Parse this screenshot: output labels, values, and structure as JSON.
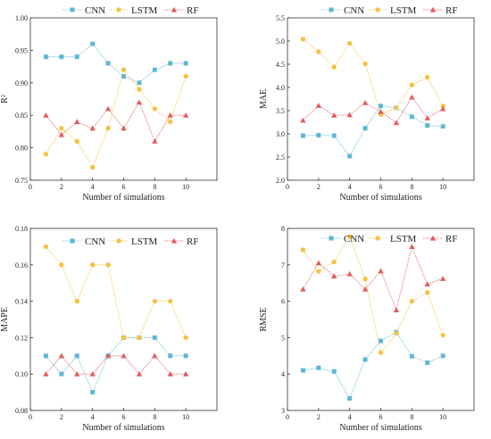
{
  "chart_data": [
    {
      "type": "line",
      "xlabel": "Number of simulations",
      "ylabel": "R²",
      "x": [
        1,
        2,
        3,
        4,
        5,
        6,
        7,
        8,
        9,
        10
      ],
      "xlim": [
        0,
        12
      ],
      "xticks": [
        0,
        2,
        4,
        6,
        8,
        10
      ],
      "ylim": [
        0.75,
        1.0
      ],
      "yticks": [
        0.75,
        0.8,
        0.85,
        0.9,
        0.95,
        1.0
      ],
      "ytick_labels": [
        "0.75",
        "0.80",
        "0.85",
        "0.90",
        "0.95",
        "1.00"
      ],
      "legend_position": "top",
      "series": [
        {
          "name": "CNN",
          "color": "#5fb6d6",
          "marker": "square",
          "values": [
            0.94,
            0.94,
            0.94,
            0.96,
            0.93,
            0.91,
            0.9,
            0.92,
            0.93,
            0.93
          ]
        },
        {
          "name": "LSTM",
          "color": "#f5c242",
          "marker": "circle",
          "values": [
            0.79,
            0.83,
            0.81,
            0.77,
            0.83,
            0.92,
            0.89,
            0.86,
            0.84,
            0.91
          ]
        },
        {
          "name": "RF",
          "color": "#e45c5c",
          "marker": "triangle",
          "values": [
            0.85,
            0.82,
            0.84,
            0.83,
            0.86,
            0.83,
            0.87,
            0.81,
            0.85,
            0.85
          ]
        }
      ]
    },
    {
      "type": "line",
      "xlabel": "Number of simulations",
      "ylabel": "MAE",
      "x": [
        1,
        2,
        3,
        4,
        5,
        6,
        7,
        8,
        9,
        10
      ],
      "xlim": [
        0,
        12
      ],
      "xticks": [
        0,
        2,
        4,
        6,
        8,
        10
      ],
      "ylim": [
        2.0,
        5.5
      ],
      "yticks": [
        2.0,
        2.5,
        3.0,
        3.5,
        4.0,
        4.5,
        5.0,
        5.5
      ],
      "ytick_labels": [
        "2.0",
        "2.5",
        "3.0",
        "3.5",
        "4.0",
        "4.5",
        "5.0",
        "5.5"
      ],
      "legend_position": "top",
      "series": [
        {
          "name": "CNN",
          "color": "#5fb6d6",
          "marker": "square",
          "values": [
            2.96,
            2.97,
            2.96,
            2.52,
            3.12,
            3.6,
            3.56,
            3.37,
            3.18,
            3.16
          ]
        },
        {
          "name": "LSTM",
          "color": "#f5c242",
          "marker": "circle",
          "values": [
            5.04,
            4.77,
            4.44,
            4.95,
            4.51,
            3.42,
            3.56,
            4.05,
            4.22,
            3.6
          ]
        },
        {
          "name": "RF",
          "color": "#e45c5c",
          "marker": "triangle",
          "values": [
            3.29,
            3.61,
            3.4,
            3.41,
            3.67,
            3.48,
            3.24,
            3.79,
            3.34,
            3.54
          ]
        }
      ]
    },
    {
      "type": "line",
      "xlabel": "Number of simulations",
      "ylabel": "MAPE",
      "x": [
        1,
        2,
        3,
        4,
        5,
        6,
        7,
        8,
        9,
        10
      ],
      "xlim": [
        0,
        12
      ],
      "xticks": [
        0,
        2,
        4,
        6,
        8,
        10
      ],
      "ylim": [
        0.08,
        0.18
      ],
      "yticks": [
        0.08,
        0.1,
        0.12,
        0.14,
        0.16,
        0.18
      ],
      "ytick_labels": [
        "0.08",
        "0.10",
        "0.12",
        "0.14",
        "0.16",
        "0.18"
      ],
      "legend_position": "top",
      "series": [
        {
          "name": "CNN",
          "color": "#5fb6d6",
          "marker": "square",
          "values": [
            0.11,
            0.1,
            0.11,
            0.09,
            0.11,
            0.12,
            0.12,
            0.12,
            0.11,
            0.11
          ]
        },
        {
          "name": "LSTM",
          "color": "#f5c242",
          "marker": "circle",
          "values": [
            0.17,
            0.16,
            0.14,
            0.16,
            0.16,
            0.12,
            0.12,
            0.14,
            0.14,
            0.12
          ]
        },
        {
          "name": "RF",
          "color": "#e45c5c",
          "marker": "triangle",
          "values": [
            0.1,
            0.11,
            0.1,
            0.1,
            0.11,
            0.11,
            0.1,
            0.11,
            0.1,
            0.1
          ]
        }
      ]
    },
    {
      "type": "line",
      "xlabel": "Number of simulations",
      "ylabel": "RMSE",
      "x": [
        1,
        2,
        3,
        4,
        5,
        6,
        7,
        8,
        9,
        10
      ],
      "xlim": [
        0,
        12
      ],
      "xticks": [
        0,
        2,
        4,
        6,
        8,
        10
      ],
      "ylim": [
        3,
        8
      ],
      "yticks": [
        3,
        4,
        5,
        6,
        7,
        8
      ],
      "ytick_labels": [
        "3",
        "4",
        "5",
        "6",
        "7",
        "8"
      ],
      "legend_position": "top",
      "series": [
        {
          "name": "CNN",
          "color": "#5fb6d6",
          "marker": "square",
          "values": [
            4.1,
            4.17,
            4.07,
            3.33,
            4.4,
            4.91,
            5.15,
            4.49,
            4.31,
            4.5
          ]
        },
        {
          "name": "LSTM",
          "color": "#f5c242",
          "marker": "circle",
          "values": [
            7.41,
            6.82,
            7.08,
            7.77,
            6.61,
            4.59,
            5.12,
            6.0,
            6.24,
            5.07
          ]
        },
        {
          "name": "RF",
          "color": "#e45c5c",
          "marker": "triangle",
          "values": [
            6.33,
            7.05,
            6.69,
            6.75,
            6.33,
            6.83,
            5.76,
            7.5,
            6.47,
            6.62
          ]
        }
      ]
    }
  ]
}
